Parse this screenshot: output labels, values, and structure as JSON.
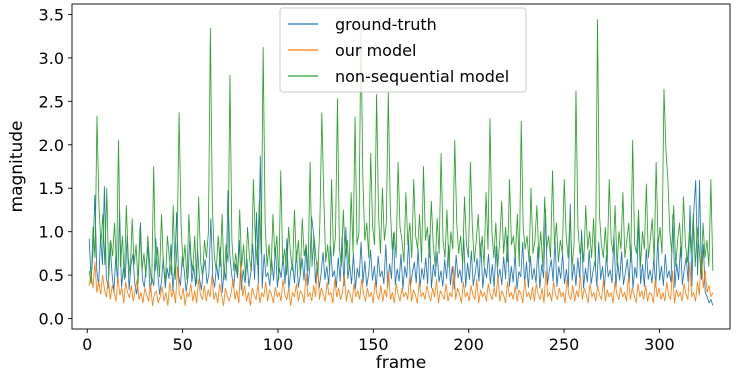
{
  "chart_data": {
    "type": "line",
    "xlabel": "frame",
    "ylabel": "magnitude",
    "xlim": [
      -8,
      337
    ],
    "ylim": [
      -0.12,
      3.62
    ],
    "xticks": [
      0,
      50,
      100,
      150,
      200,
      250,
      300
    ],
    "yticks": [
      0.0,
      0.5,
      1.0,
      1.5,
      2.0,
      2.5,
      3.0,
      3.5
    ],
    "x_start": 1,
    "x_end": 328,
    "legend_position": "top-center",
    "series": [
      {
        "name": "ground-truth",
        "color": "#1f77b4",
        "values": [
          0.92,
          0.45,
          0.75,
          1.42,
          0.55,
          0.38,
          0.95,
          0.62,
          1.52,
          0.48,
          0.35,
          0.88,
          0.52,
          0.3,
          0.72,
          0.41,
          1.25,
          0.36,
          0.58,
          0.47,
          0.95,
          0.33,
          0.62,
          0.74,
          0.4,
          0.28,
          0.55,
          1.1,
          0.45,
          0.36,
          0.62,
          0.83,
          0.3,
          0.47,
          0.38,
          0.92,
          0.55,
          0.28,
          0.42,
          0.7,
          0.35,
          0.58,
          0.46,
          0.85,
          0.32,
          0.6,
          1.22,
          0.5,
          0.38,
          0.72,
          0.55,
          0.31,
          0.48,
          0.95,
          0.42,
          0.6,
          0.37,
          0.8,
          0.46,
          0.33,
          0.55,
          0.68,
          0.4,
          0.52,
          1.15,
          0.48,
          0.36,
          0.62,
          0.45,
          0.82,
          0.3,
          0.57,
          0.44,
          0.38,
          0.72,
          0.5,
          0.35,
          0.63,
          0.47,
          0.9,
          0.33,
          0.56,
          0.41,
          0.68,
          0.37,
          0.52,
          0.86,
          0.45,
          1.22,
          0.4,
          0.6,
          0.35,
          0.74,
          0.48,
          0.53,
          0.38,
          0.67,
          0.44,
          0.82,
          0.36,
          0.58,
          0.47,
          0.72,
          0.4,
          0.92,
          0.33,
          0.55,
          0.63,
          0.41,
          0.78,
          0.36,
          0.5,
          0.69,
          0.44,
          0.85,
          0.38,
          0.57,
          0.47,
          0.98,
          0.41,
          0.64,
          0.35,
          0.52,
          0.76,
          0.45,
          0.6,
          0.39,
          0.83,
          0.48,
          0.55,
          0.36,
          0.7,
          0.43,
          0.94,
          0.38,
          1.05,
          0.46,
          0.62,
          0.4,
          0.75,
          0.34,
          0.58,
          0.47,
          0.88,
          0.41,
          0.66,
          0.37,
          0.52,
          0.79,
          0.44,
          0.6,
          0.35,
          0.72,
          0.48,
          0.55,
          0.4,
          0.85,
          0.36,
          0.63,
          0.46,
          0.98,
          0.39,
          0.57,
          0.43,
          0.74,
          0.34,
          0.6,
          0.47,
          0.9,
          0.38,
          0.53,
          0.65,
          0.41,
          0.8,
          0.36,
          0.58,
          0.45,
          0.7,
          0.4,
          0.96,
          0.35,
          0.62,
          0.48,
          0.77,
          0.42,
          0.55,
          0.37,
          0.68,
          0.46,
          0.84,
          0.39,
          0.6,
          0.34,
          0.73,
          0.47,
          0.56,
          0.41,
          0.92,
          0.36,
          0.64,
          0.45,
          0.78,
          0.38,
          0.52,
          0.69,
          0.43,
          0.87,
          0.35,
          0.59,
          0.47,
          0.74,
          0.4,
          0.62,
          0.36,
          0.83,
          0.44,
          0.57,
          0.39,
          0.71,
          0.46,
          0.95,
          0.37,
          0.6,
          0.42,
          0.76,
          0.34,
          0.54,
          0.48,
          0.88,
          0.4,
          0.65,
          0.36,
          0.72,
          0.45,
          0.58,
          0.41,
          0.82,
          0.35,
          0.62,
          0.47,
          1.25,
          0.39,
          0.55,
          0.68,
          0.43,
          0.9,
          0.37,
          0.6,
          0.46,
          0.75,
          0.4,
          0.57,
          0.36,
          0.84,
          0.44,
          0.63,
          0.38,
          0.7,
          0.47,
          1.02,
          0.35,
          0.58,
          0.42,
          0.79,
          0.4,
          0.55,
          0.66,
          0.37,
          0.88,
          0.45,
          0.6,
          0.34,
          0.73,
          0.48,
          0.56,
          0.41,
          0.95,
          0.36,
          0.64,
          0.44,
          0.77,
          0.39,
          0.53,
          0.68,
          0.42,
          0.86,
          0.35,
          0.59,
          0.47,
          1.12,
          0.4,
          0.62,
          0.37,
          0.8,
          0.45,
          0.56,
          0.41,
          0.7,
          0.36,
          0.92,
          0.44,
          0.6,
          0.38,
          0.74,
          0.47,
          0.55,
          0.42,
          1.2,
          0.36,
          0.63,
          0.45,
          0.82,
          0.39,
          0.57,
          0.7,
          0.43,
          1.3,
          0.37,
          0.6,
          1.59,
          0.5,
          1.38,
          0.45,
          0.85,
          0.3,
          0.25,
          0.18,
          0.22,
          0.15
        ],
        "peaks": {
          "73": 1.47,
          "90": 1.87,
          "117": 1.17,
          "253": 1.32,
          "321": 1.59,
          "318": 1.25
        }
      },
      {
        "name": "our model",
        "color": "#ff7f0e",
        "values": [
          0.38,
          0.52,
          0.35,
          0.65,
          0.3,
          0.42,
          0.28,
          0.5,
          0.33,
          0.25,
          0.45,
          0.22,
          0.38,
          0.3,
          0.2,
          0.48,
          0.27,
          0.35,
          0.18,
          0.42,
          0.3,
          0.24,
          0.38,
          0.2,
          0.33,
          0.45,
          0.22,
          0.3,
          0.18,
          0.35,
          0.27,
          0.2,
          0.4,
          0.15,
          0.28,
          0.32,
          0.18,
          0.25,
          0.37,
          0.2,
          0.3,
          0.15,
          0.42,
          0.25,
          0.33,
          0.18,
          0.6,
          0.28,
          0.22,
          0.35,
          0.15,
          0.3,
          0.25,
          0.4,
          0.2,
          0.32,
          0.18,
          0.45,
          0.27,
          0.22,
          0.38,
          0.2,
          0.33,
          0.25,
          0.5,
          0.22,
          0.3,
          0.18,
          0.4,
          0.28,
          0.15,
          0.35,
          0.25,
          0.2,
          0.3,
          0.45,
          0.22,
          0.32,
          0.18,
          0.65,
          0.26,
          0.38,
          0.2,
          0.3,
          0.15,
          0.35,
          0.27,
          0.22,
          0.4,
          0.18,
          0.3,
          0.25,
          0.42,
          0.2,
          0.33,
          0.28,
          0.18,
          0.36,
          0.25,
          0.3,
          0.2,
          0.45,
          0.27,
          0.22,
          0.35,
          0.15,
          0.3,
          0.25,
          0.4,
          0.2,
          0.32,
          0.28,
          0.18,
          0.52,
          0.25,
          0.3,
          0.2,
          0.38,
          0.25,
          0.65,
          0.22,
          0.35,
          0.28,
          0.2,
          0.42,
          0.27,
          0.3,
          0.18,
          0.45,
          0.25,
          0.35,
          0.22,
          0.3,
          0.5,
          0.2,
          0.33,
          0.28,
          0.18,
          0.4,
          0.25,
          0.32,
          0.22,
          0.45,
          0.28,
          0.2,
          0.35,
          0.25,
          0.3,
          0.18,
          0.42,
          0.27,
          0.22,
          0.38,
          0.2,
          0.33,
          0.25,
          0.55,
          0.22,
          0.3,
          0.18,
          0.4,
          0.28,
          0.2,
          0.35,
          0.25,
          0.3,
          0.22,
          0.48,
          0.2,
          0.33,
          0.27,
          0.18,
          0.42,
          0.25,
          0.3,
          0.22,
          0.38,
          0.28,
          0.2,
          0.35,
          0.25,
          0.45,
          0.18,
          0.32,
          0.27,
          0.22,
          0.4,
          0.2,
          0.3,
          0.25,
          0.6,
          0.22,
          0.35,
          0.28,
          0.18,
          0.42,
          0.25,
          0.3,
          0.2,
          0.38,
          0.27,
          0.22,
          0.45,
          0.18,
          0.33,
          0.25,
          0.3,
          0.2,
          0.4,
          0.28,
          0.22,
          0.35,
          0.25,
          0.5,
          0.2,
          0.32,
          0.27,
          0.18,
          0.42,
          0.25,
          0.3,
          0.22,
          0.38,
          0.2,
          0.33,
          0.28,
          0.18,
          0.45,
          0.25,
          0.3,
          0.22,
          0.36,
          0.2,
          0.4,
          0.27,
          0.22,
          0.35,
          0.18,
          0.55,
          0.25,
          0.3,
          0.2,
          0.42,
          0.28,
          0.22,
          0.35,
          0.25,
          0.3,
          0.18,
          0.45,
          0.27,
          0.22,
          0.38,
          0.2,
          0.32,
          0.25,
          0.5,
          0.22,
          0.35,
          0.28,
          0.18,
          0.4,
          0.25,
          0.3,
          0.2,
          0.38,
          0.27,
          0.22,
          0.45,
          0.2,
          0.33,
          0.25,
          0.3,
          0.18,
          0.42,
          0.28,
          0.22,
          0.36,
          0.25,
          0.3,
          0.2,
          0.48,
          0.22,
          0.35,
          0.27,
          0.18,
          0.4,
          0.25,
          0.32,
          0.22,
          0.38,
          0.2,
          0.3,
          0.28,
          0.18,
          0.45,
          0.25,
          0.35,
          0.22,
          0.3,
          0.2,
          0.42,
          0.27,
          0.22,
          0.55,
          0.18,
          0.33,
          0.25,
          0.3,
          0.2,
          0.4,
          0.28,
          0.22,
          0.65,
          0.25,
          0.3,
          0.2,
          0.42,
          0.27,
          0.78,
          0.35,
          0.55,
          0.3,
          0.38,
          0.25,
          0.3
        ]
      },
      {
        "name": "non-sequential model",
        "color": "#2ca02c",
        "values": [
          0.55,
          0.4,
          1.05,
          0.7,
          2.33,
          1.3,
          0.85,
          1.2,
          0.62,
          1.5,
          0.48,
          0.9,
          0.72,
          1.1,
          0.55,
          2.05,
          0.6,
          0.95,
          0.45,
          1.3,
          0.7,
          0.5,
          1.15,
          0.62,
          0.85,
          0.4,
          1.05,
          0.55,
          0.75,
          0.48,
          0.95,
          0.62,
          0.4,
          1.75,
          0.55,
          0.82,
          0.48,
          1.2,
          0.6,
          0.42,
          0.95,
          0.7,
          0.5,
          1.3,
          0.45,
          0.85,
          2.37,
          1.1,
          0.6,
          0.85,
          0.45,
          1.2,
          0.72,
          0.55,
          0.95,
          0.4,
          1.4,
          0.65,
          0.5,
          0.9,
          0.7,
          1.0,
          3.34,
          1.3,
          0.72,
          0.55,
          0.95,
          0.6,
          1.2,
          0.45,
          0.85,
          0.65,
          2.8,
          0.9,
          0.55,
          0.75,
          0.5,
          1.25,
          0.6,
          0.85,
          0.45,
          1.05,
          0.7,
          0.55,
          1.6,
          0.9,
          0.62,
          1.35,
          0.75,
          3.12,
          1.1,
          0.6,
          0.85,
          0.5,
          1.2,
          0.7,
          0.95,
          0.45,
          1.7,
          0.62,
          0.8,
          0.5,
          1.05,
          0.75,
          0.55,
          1.25,
          0.65,
          0.9,
          0.5,
          1.15,
          0.72,
          0.85,
          0.55,
          1.8,
          0.6,
          0.95,
          0.7,
          0.5,
          1.1,
          2.37,
          1.4,
          0.65,
          0.85,
          0.55,
          1.6,
          0.72,
          0.95,
          2.53,
          0.8,
          0.6,
          1.25,
          0.7,
          0.9,
          0.55,
          1.45,
          0.75,
          2.32,
          0.85,
          1.0,
          3.33,
          1.6,
          0.9,
          1.1,
          0.7,
          1.9,
          1.05,
          0.85,
          2.58,
          1.2,
          0.75,
          1.5,
          0.9,
          1.1,
          2.6,
          1.3,
          0.8,
          1.0,
          0.7,
          1.8,
          1.05,
          0.9,
          0.65,
          1.45,
          0.85,
          1.1,
          0.7,
          1.6,
          0.95,
          0.8,
          1.2,
          0.65,
          1.75,
          0.9,
          1.05,
          0.7,
          1.35,
          0.85,
          0.6,
          1.15,
          0.75,
          1.9,
          0.9,
          0.7,
          1.25,
          0.6,
          1.0,
          0.8,
          2.05,
          1.1,
          0.75,
          0.95,
          0.62,
          1.4,
          0.85,
          0.7,
          1.8,
          1.05,
          0.65,
          0.9,
          1.2,
          0.7,
          0.95,
          0.6,
          1.45,
          0.8,
          2.3,
          1.0,
          0.7,
          1.1,
          0.6,
          0.9,
          1.35,
          0.75,
          1.05,
          0.65,
          1.6,
          0.85,
          0.95,
          0.7,
          1.2,
          0.6,
          2.27,
          1.05,
          0.8,
          0.95,
          0.65,
          1.5,
          0.75,
          0.9,
          1.3,
          0.7,
          1.0,
          0.6,
          1.4,
          0.8,
          0.95,
          0.7,
          1.7,
          0.85,
          1.1,
          0.65,
          0.9,
          0.75,
          1.6,
          0.95,
          0.7,
          1.2,
          0.6,
          0.85,
          2.62,
          1.05,
          0.75,
          0.9,
          0.65,
          1.3,
          0.8,
          1.0,
          0.7,
          1.15,
          0.6,
          3.44,
          1.2,
          0.85,
          0.7,
          1.05,
          0.65,
          1.6,
          0.9,
          0.75,
          1.3,
          0.6,
          1.0,
          0.8,
          1.45,
          0.7,
          0.9,
          1.1,
          0.65,
          2.05,
          0.85,
          0.75,
          1.25,
          0.6,
          1.0,
          0.8,
          1.55,
          0.7,
          0.9,
          1.15,
          0.65,
          1.8,
          0.85,
          1.05,
          0.75,
          2.64,
          1.95,
          1.6,
          1.0,
          0.75,
          1.3,
          0.6,
          0.9,
          1.1,
          0.7,
          1.4,
          0.85,
          0.65,
          1.0,
          0.75,
          1.2,
          0.6,
          1.05,
          0.8,
          0.5,
          1.1,
          0.7,
          0.9,
          0.6,
          1.6,
          0.55
        ]
      }
    ]
  }
}
